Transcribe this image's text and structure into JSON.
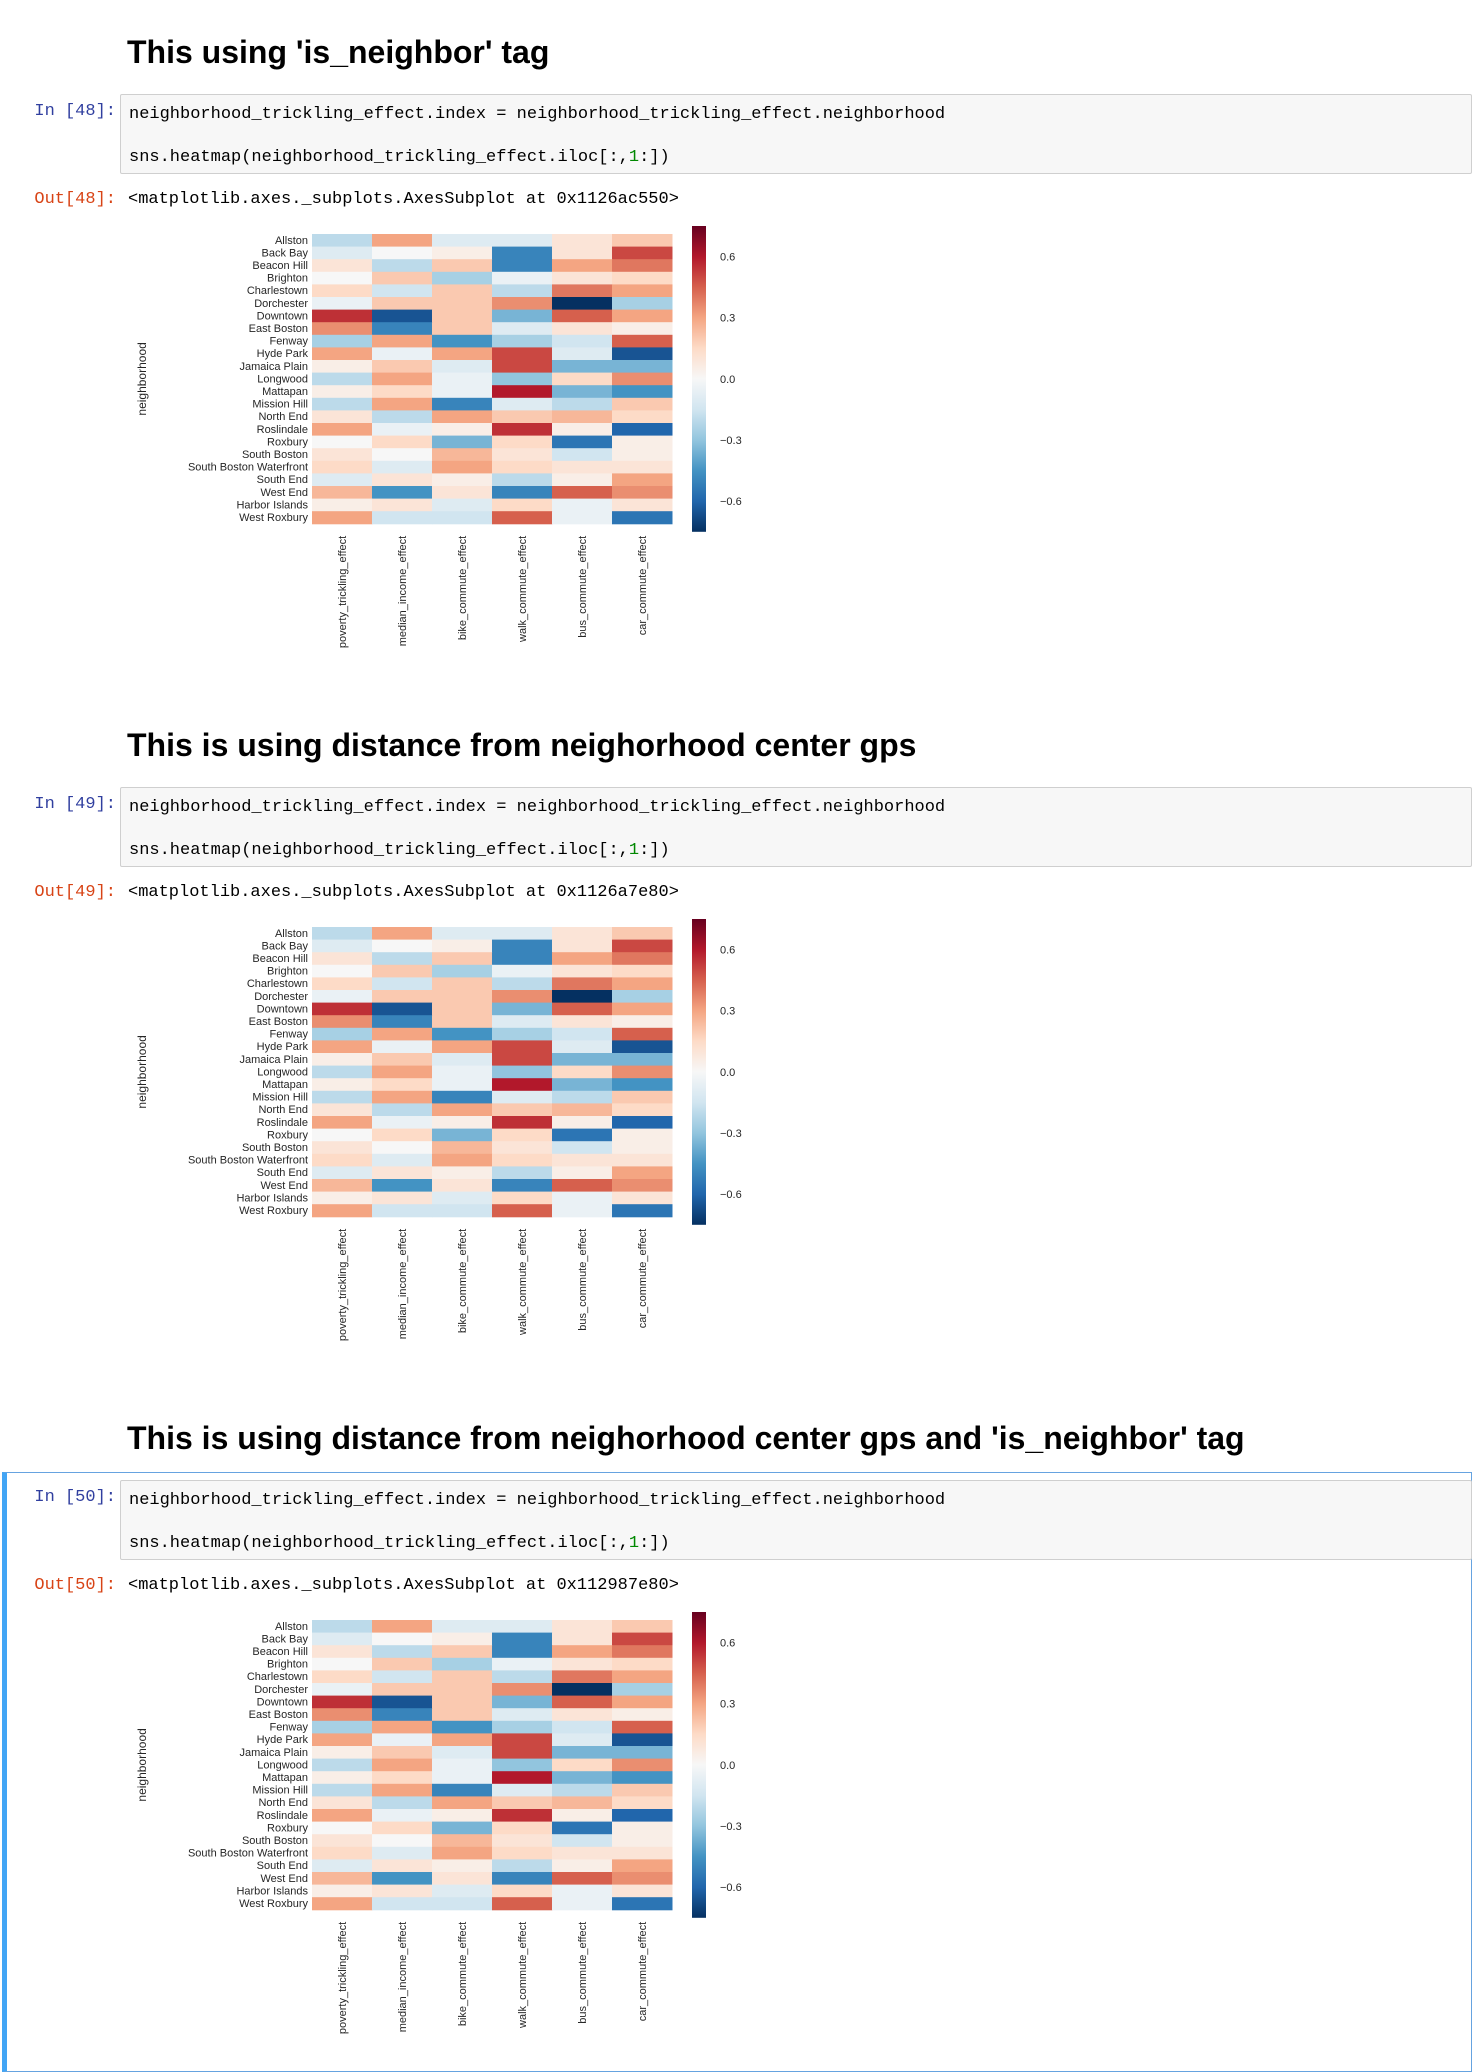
{
  "cells": [
    {
      "heading": "This using 'is_neighbor' tag",
      "in_prompt": "In [48]:",
      "code_line1": "neighborhood_trickling_effect.index = neighborhood_trickling_effect.neighborhood",
      "code_line2_prefix": "sns.heatmap(neighborhood_trickling_effect.iloc[:,",
      "code_line2_num": "1",
      "code_line2_suffix": ":])",
      "out_prompt": "Out[48]:",
      "output_text": "<matplotlib.axes._subplots.AxesSubplot at 0x1126ac550>"
    },
    {
      "heading": "This is using distance from neighorhood center gps",
      "in_prompt": "In [49]:",
      "code_line1": "neighborhood_trickling_effect.index = neighborhood_trickling_effect.neighborhood",
      "code_line2_prefix": "sns.heatmap(neighborhood_trickling_effect.iloc[:,",
      "code_line2_num": "1",
      "code_line2_suffix": ":])",
      "out_prompt": "Out[49]:",
      "output_text": "<matplotlib.axes._subplots.AxesSubplot at 0x1126a7e80>"
    },
    {
      "heading": "This is using distance from neighorhood center gps and 'is_neighbor' tag",
      "in_prompt": "In [50]:",
      "code_line1": "neighborhood_trickling_effect.index = neighborhood_trickling_effect.neighborhood",
      "code_line2_prefix": "sns.heatmap(neighborhood_trickling_effect.iloc[:,",
      "code_line2_num": "1",
      "code_line2_suffix": ":])",
      "out_prompt": "Out[50]:",
      "output_text": "<matplotlib.axes._subplots.AxesSubplot at 0x112987e80>"
    }
  ],
  "colors": {
    "in_prompt": "#303f9f",
    "out_prompt": "#d84315",
    "selected_cell_border": "#42a5f5",
    "code_number": "#008800",
    "colormap": "RdBu_r"
  },
  "chart_data": [
    {
      "type": "heatmap",
      "ylabel": "neighborhood",
      "colorbar_ticks": [
        0.6,
        0.3,
        0.0,
        -0.3,
        -0.6
      ],
      "colorbar_range": [
        -0.75,
        0.75
      ],
      "rows": [
        "Allston",
        "Back Bay",
        "Beacon Hill",
        "Brighton",
        "Charlestown",
        "Dorchester",
        "Downtown",
        "East Boston",
        "Fenway",
        "Hyde Park",
        "Jamaica Plain",
        "Longwood",
        "Mattapan",
        "Mission Hill",
        "North End",
        "Roslindale",
        "Roxbury",
        "South Boston",
        "South Boston Waterfront",
        "South End",
        "West End",
        "Harbor Islands",
        "West Roxbury"
      ],
      "columns": [
        "poverty_trickling_effect",
        "median_income_effect",
        "bike_commute_effect",
        "walk_commute_effect",
        "bus_commute_effect",
        "car_commute_effect"
      ],
      "values": [
        [
          -0.2,
          0.3,
          -0.1,
          -0.1,
          0.1,
          0.2
        ],
        [
          -0.1,
          0.0,
          0.05,
          -0.5,
          0.1,
          0.5
        ],
        [
          0.1,
          -0.2,
          0.2,
          -0.5,
          0.3,
          0.4
        ],
        [
          0.0,
          0.2,
          -0.25,
          -0.05,
          0.1,
          0.15
        ],
        [
          0.15,
          -0.15,
          0.2,
          -0.2,
          0.4,
          0.3
        ],
        [
          -0.05,
          0.2,
          0.2,
          0.35,
          -0.8,
          -0.25
        ],
        [
          0.55,
          -0.65,
          0.2,
          -0.35,
          0.45,
          0.3
        ],
        [
          0.35,
          -0.5,
          0.2,
          -0.1,
          0.1,
          0.05
        ],
        [
          -0.25,
          0.3,
          -0.45,
          -0.25,
          -0.15,
          0.45
        ],
        [
          0.3,
          -0.05,
          0.3,
          0.5,
          -0.1,
          -0.65
        ],
        [
          0.05,
          0.2,
          -0.1,
          0.5,
          -0.35,
          -0.35
        ],
        [
          -0.2,
          0.3,
          -0.05,
          -0.3,
          0.15,
          0.35
        ],
        [
          0.05,
          0.15,
          -0.05,
          0.6,
          -0.35,
          -0.45
        ],
        [
          -0.2,
          0.3,
          -0.5,
          -0.1,
          -0.2,
          0.2
        ],
        [
          0.1,
          -0.2,
          0.3,
          0.2,
          0.25,
          0.15
        ],
        [
          0.3,
          -0.05,
          0.05,
          0.55,
          0.05,
          -0.6
        ],
        [
          0.0,
          0.15,
          -0.35,
          0.15,
          -0.55,
          0.05
        ],
        [
          0.1,
          0.0,
          0.25,
          0.1,
          -0.15,
          0.05
        ],
        [
          0.15,
          -0.1,
          0.3,
          0.15,
          0.1,
          0.1
        ],
        [
          -0.1,
          0.1,
          0.05,
          -0.2,
          0.05,
          0.3
        ],
        [
          0.25,
          -0.45,
          0.1,
          -0.5,
          0.45,
          0.35
        ],
        [
          0.05,
          0.1,
          -0.1,
          0.15,
          -0.05,
          0.1
        ],
        [
          0.3,
          -0.15,
          -0.15,
          0.45,
          -0.05,
          -0.55
        ]
      ]
    },
    {
      "type": "heatmap",
      "ylabel": "neighborhood",
      "colorbar_ticks": [
        0.6,
        0.3,
        0.0,
        -0.3,
        -0.6
      ],
      "colorbar_range": [
        -0.75,
        0.75
      ],
      "rows": [
        "Allston",
        "Back Bay",
        "Beacon Hill",
        "Brighton",
        "Charlestown",
        "Dorchester",
        "Downtown",
        "East Boston",
        "Fenway",
        "Hyde Park",
        "Jamaica Plain",
        "Longwood",
        "Mattapan",
        "Mission Hill",
        "North End",
        "Roslindale",
        "Roxbury",
        "South Boston",
        "South Boston Waterfront",
        "South End",
        "West End",
        "Harbor Islands",
        "West Roxbury"
      ],
      "columns": [
        "poverty_trickling_effect",
        "median_income_effect",
        "bike_commute_effect",
        "walk_commute_effect",
        "bus_commute_effect",
        "car_commute_effect"
      ],
      "values": [
        [
          -0.2,
          0.3,
          -0.1,
          -0.1,
          0.1,
          0.2
        ],
        [
          -0.1,
          0.0,
          0.05,
          -0.5,
          0.1,
          0.5
        ],
        [
          0.1,
          -0.2,
          0.2,
          -0.5,
          0.3,
          0.4
        ],
        [
          0.0,
          0.2,
          -0.25,
          -0.05,
          0.1,
          0.15
        ],
        [
          0.15,
          -0.15,
          0.2,
          -0.2,
          0.4,
          0.3
        ],
        [
          -0.05,
          0.2,
          0.2,
          0.35,
          -0.8,
          -0.25
        ],
        [
          0.55,
          -0.65,
          0.2,
          -0.35,
          0.45,
          0.3
        ],
        [
          0.35,
          -0.5,
          0.2,
          -0.1,
          0.1,
          0.05
        ],
        [
          -0.25,
          0.3,
          -0.45,
          -0.25,
          -0.15,
          0.45
        ],
        [
          0.3,
          -0.05,
          0.3,
          0.5,
          -0.1,
          -0.65
        ],
        [
          0.05,
          0.2,
          -0.1,
          0.5,
          -0.35,
          -0.35
        ],
        [
          -0.2,
          0.3,
          -0.05,
          -0.3,
          0.15,
          0.35
        ],
        [
          0.05,
          0.15,
          -0.05,
          0.6,
          -0.35,
          -0.45
        ],
        [
          -0.2,
          0.3,
          -0.5,
          -0.1,
          -0.2,
          0.2
        ],
        [
          0.1,
          -0.2,
          0.3,
          0.2,
          0.25,
          0.15
        ],
        [
          0.3,
          -0.05,
          0.05,
          0.55,
          0.05,
          -0.6
        ],
        [
          0.0,
          0.15,
          -0.35,
          0.15,
          -0.55,
          0.05
        ],
        [
          0.1,
          0.0,
          0.25,
          0.1,
          -0.15,
          0.05
        ],
        [
          0.15,
          -0.1,
          0.3,
          0.15,
          0.1,
          0.1
        ],
        [
          -0.1,
          0.1,
          0.05,
          -0.2,
          0.05,
          0.3
        ],
        [
          0.25,
          -0.45,
          0.1,
          -0.5,
          0.45,
          0.35
        ],
        [
          0.05,
          0.1,
          -0.1,
          0.15,
          -0.05,
          0.1
        ],
        [
          0.3,
          -0.15,
          -0.15,
          0.45,
          -0.05,
          -0.55
        ]
      ]
    },
    {
      "type": "heatmap",
      "ylabel": "neighborhood",
      "colorbar_ticks": [
        0.6,
        0.3,
        0.0,
        -0.3,
        -0.6
      ],
      "colorbar_range": [
        -0.75,
        0.75
      ],
      "rows": [
        "Allston",
        "Back Bay",
        "Beacon Hill",
        "Brighton",
        "Charlestown",
        "Dorchester",
        "Downtown",
        "East Boston",
        "Fenway",
        "Hyde Park",
        "Jamaica Plain",
        "Longwood",
        "Mattapan",
        "Mission Hill",
        "North End",
        "Roslindale",
        "Roxbury",
        "South Boston",
        "South Boston Waterfront",
        "South End",
        "West End",
        "Harbor Islands",
        "West Roxbury"
      ],
      "columns": [
        "poverty_trickling_effect",
        "median_income_effect",
        "bike_commute_effect",
        "walk_commute_effect",
        "bus_commute_effect",
        "car_commute_effect"
      ],
      "values": [
        [
          -0.2,
          0.3,
          -0.1,
          -0.1,
          0.1,
          0.2
        ],
        [
          -0.1,
          0.0,
          0.05,
          -0.5,
          0.1,
          0.5
        ],
        [
          0.1,
          -0.2,
          0.2,
          -0.5,
          0.3,
          0.4
        ],
        [
          0.0,
          0.2,
          -0.25,
          -0.05,
          0.1,
          0.15
        ],
        [
          0.15,
          -0.15,
          0.2,
          -0.2,
          0.4,
          0.3
        ],
        [
          -0.05,
          0.2,
          0.2,
          0.35,
          -0.8,
          -0.25
        ],
        [
          0.55,
          -0.65,
          0.2,
          -0.35,
          0.45,
          0.3
        ],
        [
          0.35,
          -0.5,
          0.2,
          -0.1,
          0.1,
          0.05
        ],
        [
          -0.25,
          0.3,
          -0.45,
          -0.25,
          -0.15,
          0.45
        ],
        [
          0.3,
          -0.05,
          0.3,
          0.5,
          -0.1,
          -0.65
        ],
        [
          0.05,
          0.2,
          -0.1,
          0.5,
          -0.35,
          -0.35
        ],
        [
          -0.2,
          0.3,
          -0.05,
          -0.3,
          0.15,
          0.35
        ],
        [
          0.05,
          0.15,
          -0.05,
          0.6,
          -0.35,
          -0.45
        ],
        [
          -0.2,
          0.3,
          -0.5,
          -0.1,
          -0.2,
          0.2
        ],
        [
          0.1,
          -0.2,
          0.3,
          0.2,
          0.25,
          0.15
        ],
        [
          0.3,
          -0.05,
          0.05,
          0.55,
          0.05,
          -0.6
        ],
        [
          0.0,
          0.15,
          -0.35,
          0.15,
          -0.55,
          0.05
        ],
        [
          0.1,
          0.0,
          0.25,
          0.1,
          -0.15,
          0.05
        ],
        [
          0.15,
          -0.1,
          0.3,
          0.15,
          0.1,
          0.1
        ],
        [
          -0.1,
          0.1,
          0.05,
          -0.2,
          0.05,
          0.3
        ],
        [
          0.25,
          -0.45,
          0.1,
          -0.5,
          0.45,
          0.35
        ],
        [
          0.05,
          0.1,
          -0.1,
          0.15,
          -0.05,
          0.1
        ],
        [
          0.3,
          -0.15,
          -0.15,
          0.45,
          -0.05,
          -0.55
        ]
      ]
    }
  ]
}
